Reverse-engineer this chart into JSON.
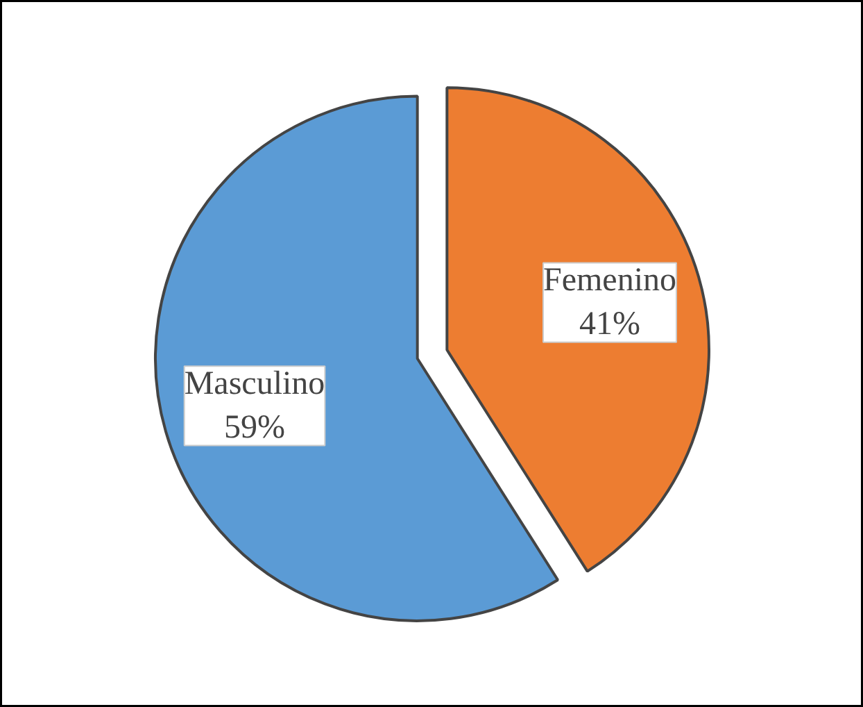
{
  "chart_data": {
    "type": "pie",
    "categories": [
      "Femenino",
      "Masculino"
    ],
    "values": [
      41,
      59
    ],
    "value_labels": [
      "41%",
      "59%"
    ],
    "colors": [
      "#ed7d31",
      "#5b9bd5"
    ]
  }
}
